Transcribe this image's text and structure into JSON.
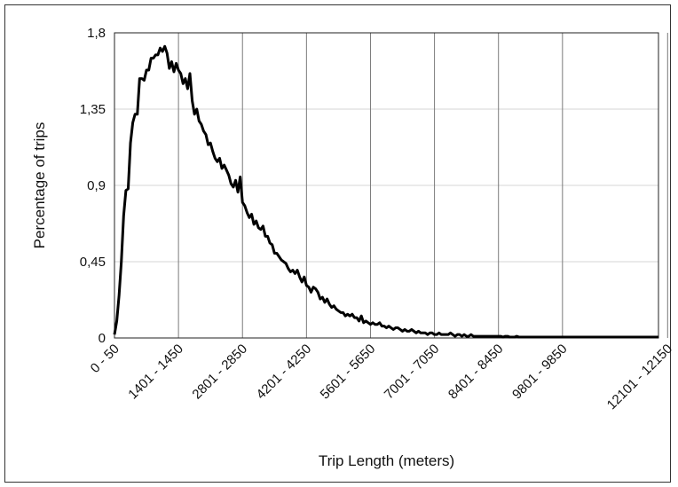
{
  "chart_data": {
    "type": "line",
    "title": "",
    "xlabel": "Trip Length (meters)",
    "ylabel": "Percentage of trips",
    "ylim": [
      0,
      1.8
    ],
    "y_ticks": [
      "0",
      "0,45",
      "0,9",
      "1,35",
      "1,8"
    ],
    "x_bin_width_m": 50,
    "x_tick_labels": [
      "0 - 50",
      "1401 - 1450",
      "2801 - 2850",
      "4201 - 4250",
      "5601 - 5650",
      "7001 - 7050",
      "8401 - 8450",
      "9801 - 9850",
      "12101 - 12150"
    ],
    "grid": "vertical lines at labeled categories",
    "legend": "none",
    "series": [
      {
        "color": "#000000",
        "values": [
          0.02,
          0.1,
          0.25,
          0.45,
          0.72,
          0.87,
          0.88,
          1.15,
          1.27,
          1.32,
          1.32,
          1.53,
          1.53,
          1.52,
          1.58,
          1.58,
          1.65,
          1.65,
          1.67,
          1.67,
          1.71,
          1.69,
          1.72,
          1.68,
          1.59,
          1.63,
          1.57,
          1.62,
          1.58,
          1.56,
          1.5,
          1.53,
          1.47,
          1.56,
          1.4,
          1.32,
          1.35,
          1.28,
          1.26,
          1.22,
          1.2,
          1.14,
          1.15,
          1.1,
          1.06,
          1.04,
          1.06,
          1.0,
          1.02,
          0.99,
          0.96,
          0.91,
          0.89,
          0.93,
          0.86,
          0.95,
          0.8,
          0.78,
          0.74,
          0.71,
          0.73,
          0.67,
          0.69,
          0.65,
          0.64,
          0.66,
          0.6,
          0.6,
          0.56,
          0.55,
          0.5,
          0.5,
          0.48,
          0.46,
          0.45,
          0.44,
          0.41,
          0.39,
          0.4,
          0.38,
          0.4,
          0.36,
          0.33,
          0.36,
          0.31,
          0.3,
          0.27,
          0.3,
          0.29,
          0.27,
          0.23,
          0.24,
          0.21,
          0.23,
          0.2,
          0.18,
          0.19,
          0.17,
          0.16,
          0.15,
          0.15,
          0.13,
          0.14,
          0.13,
          0.14,
          0.12,
          0.12,
          0.1,
          0.13,
          0.09,
          0.1,
          0.09,
          0.08,
          0.09,
          0.08,
          0.08,
          0.09,
          0.07,
          0.07,
          0.06,
          0.07,
          0.06,
          0.05,
          0.06,
          0.06,
          0.05,
          0.04,
          0.05,
          0.04,
          0.04,
          0.05,
          0.04,
          0.03,
          0.04,
          0.03,
          0.03,
          0.03,
          0.02,
          0.03,
          0.03,
          0.02,
          0.02,
          0.03,
          0.02,
          0.02,
          0.02,
          0.02,
          0.03,
          0.02,
          0.01,
          0.02,
          0.02,
          0.01,
          0.02,
          0.01,
          0.01,
          0.02,
          0.01,
          0.01,
          0.01,
          0.01,
          0.01,
          0.01,
          0.01,
          0.01,
          0.01,
          0.01,
          0.01,
          0.01,
          0.01,
          0.005,
          0.01,
          0.01,
          0.005,
          0.005,
          0.005,
          0.01,
          0.005,
          0.005,
          0.005,
          0.005,
          0.005,
          0.005,
          0.005,
          0.005,
          0.005,
          0.005,
          0.005,
          0.005,
          0.005,
          0.005,
          0.005,
          0.005,
          0.005,
          0.005,
          0.005,
          0.005,
          0.005,
          0.005,
          0.005,
          0.005,
          0.005,
          0.005,
          0.005,
          0.005,
          0.005,
          0.005,
          0.005,
          0.005,
          0.005,
          0.005,
          0.005,
          0.005,
          0.005,
          0.005,
          0.005,
          0.005,
          0.005,
          0.005,
          0.005,
          0.005,
          0.005,
          0.005,
          0.005,
          0.005,
          0.005,
          0.005,
          0.005,
          0.005,
          0.005,
          0.005,
          0.005,
          0.005,
          0.005,
          0.005,
          0.005,
          0.005,
          0.005,
          0.005
        ]
      }
    ]
  }
}
